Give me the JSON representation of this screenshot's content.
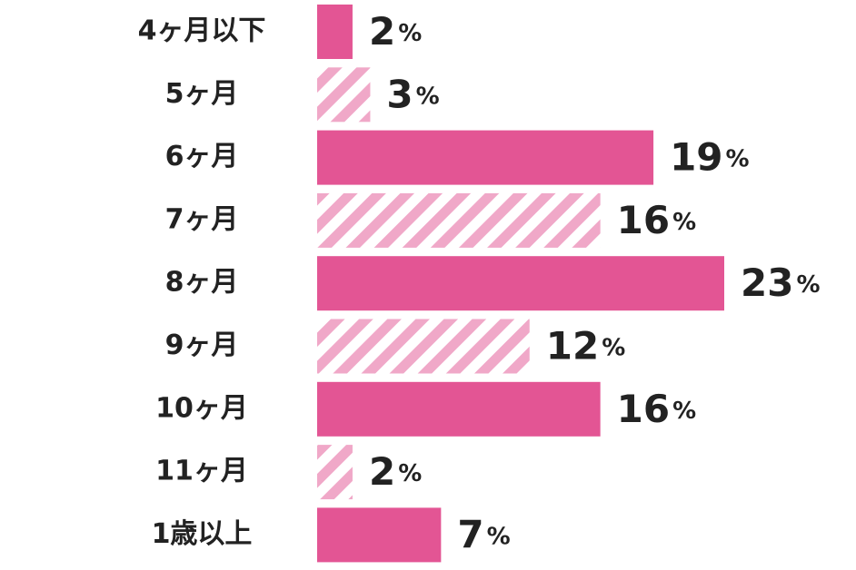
{
  "chart_data": {
    "type": "bar",
    "orientation": "horizontal",
    "categories": [
      "4ヶ月以下",
      "5ヶ月",
      "6ヶ月",
      "7ヶ月",
      "8ヶ月",
      "9ヶ月",
      "10ヶ月",
      "11ヶ月",
      "1歳以上"
    ],
    "values": [
      2,
      3,
      19,
      16,
      23,
      12,
      16,
      2,
      7
    ],
    "value_labels": [
      "2%",
      "3%",
      "19%",
      "16%",
      "23%",
      "12%",
      "16%",
      "2%",
      "7%"
    ],
    "color": "#e35594",
    "hatch_color": "#f0a8c8",
    "bar_fill": [
      "solid",
      "hatched",
      "solid",
      "hatched",
      "solid",
      "hatched",
      "solid",
      "hatched",
      "solid"
    ]
  }
}
